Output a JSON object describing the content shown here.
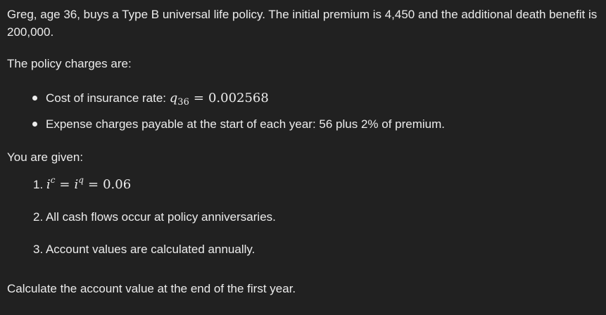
{
  "intro": "Greg, age 36, buys a Type B universal life policy. The initial premium is 4,450 and the additional death benefit is 200,000.",
  "charges_heading": "The policy charges are:",
  "charges": {
    "coi_label": "Cost of insurance rate: ",
    "coi_symbol": "q",
    "coi_subscript": "36",
    "coi_equals": "=",
    "coi_value": "0.002568",
    "expense": "Expense charges payable at the start of each year: 56 plus 2% of premium."
  },
  "given_heading": "You are given:",
  "given": {
    "item1_number": "1.",
    "item1_i": "i",
    "item1_c": "c",
    "item1_eq": "=",
    "item1_i2": "i",
    "item1_q": "q",
    "item1_eq2": "=",
    "item1_value": "0.06",
    "item2": "2. All cash flows occur at policy anniversaries.",
    "item3": "3. Account values are calculated annually."
  },
  "question": "Calculate the account value at the end of the first year."
}
